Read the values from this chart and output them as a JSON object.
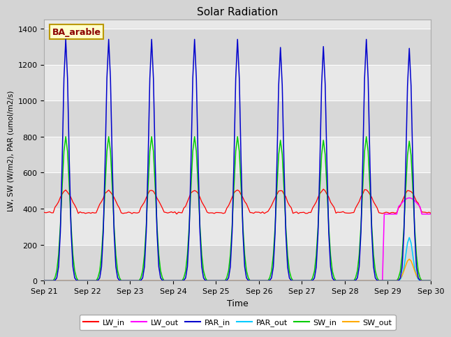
{
  "title": "Solar Radiation",
  "ylabel": "LW, SW (W/m2), PAR (umol/m2/s)",
  "xlabel": "Time",
  "annotation": "BA_arable",
  "ylim": [
    0,
    1450
  ],
  "legend_items": [
    "LW_in",
    "LW_out",
    "PAR_in",
    "PAR_out",
    "SW_in",
    "SW_out"
  ],
  "legend_colors": [
    "#ff0000",
    "#ff00ff",
    "#0000cd",
    "#00ccff",
    "#00cc00",
    "#ffaa00"
  ],
  "xtick_labels": [
    "Sep 21",
    "Sep 22",
    "Sep 23",
    "Sep 24",
    "Sep 25",
    "Sep 26",
    "Sep 27",
    "Sep 28",
    "Sep 29",
    "Sep 30"
  ],
  "ytick_labels": [
    0,
    200,
    400,
    600,
    800,
    1000,
    1200,
    1400
  ],
  "band_color": "#cccccc",
  "bg_color": "#e0e0e0",
  "fig_color": "#d0d0d0"
}
